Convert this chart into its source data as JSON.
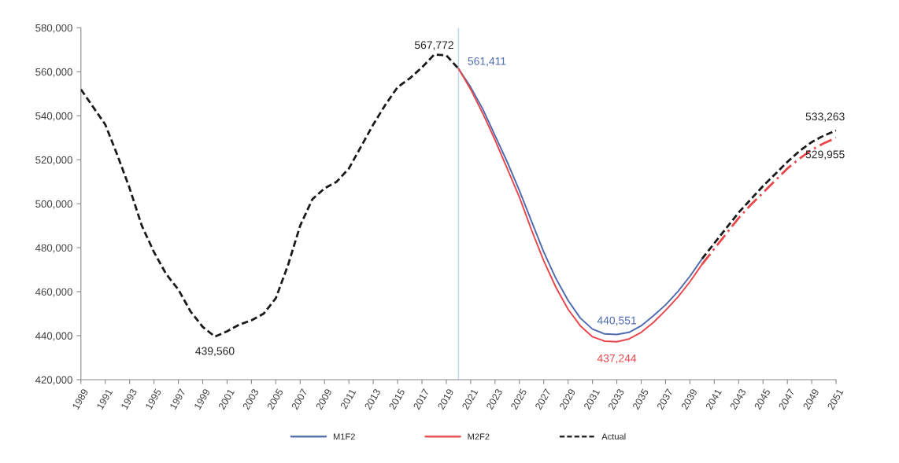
{
  "chart_data": {
    "type": "line",
    "x": [
      1989,
      1990,
      1991,
      1992,
      1993,
      1994,
      1995,
      1996,
      1997,
      1998,
      1999,
      2000,
      2001,
      2002,
      2003,
      2004,
      2005,
      2006,
      2007,
      2008,
      2009,
      2010,
      2011,
      2012,
      2013,
      2014,
      2015,
      2016,
      2017,
      2018,
      2019,
      2020
    ],
    "series": [
      {
        "name": "M1F2",
        "color": "#4f6bb0",
        "line_style": "solid",
        "x": [
          2020,
          2021,
          2022,
          2023,
          2024,
          2025,
          2026,
          2027,
          2028,
          2029,
          2030,
          2031,
          2032,
          2033,
          2034,
          2035,
          2036,
          2037,
          2038,
          2039,
          2040
        ],
        "values": [
          561411,
          553000,
          543000,
          531000,
          519000,
          506000,
          492000,
          478000,
          466000,
          456000,
          448000,
          443000,
          440800,
          440551,
          441500,
          444500,
          449000,
          454000,
          460000,
          467000,
          475000
        ]
      },
      {
        "name": "M2F2",
        "color": "#e8474b",
        "line_style": "solid",
        "x": [
          2020,
          2021,
          2022,
          2023,
          2024,
          2025,
          2026,
          2027,
          2028,
          2029,
          2030,
          2031,
          2032,
          2033,
          2034,
          2035,
          2036,
          2037,
          2038,
          2039,
          2040
        ],
        "values": [
          561411,
          552000,
          541000,
          529000,
          516000,
          503000,
          488000,
          474000,
          462000,
          452000,
          444500,
          439500,
          437500,
          437244,
          438500,
          441500,
          446000,
          451500,
          457500,
          464500,
          472500
        ]
      },
      {
        "name": "Actual",
        "color": "#1a1a1a",
        "line_style": "dashed",
        "values": [
          552000,
          544000,
          536000,
          522000,
          507000,
          490000,
          478000,
          468000,
          461000,
          451000,
          444000,
          439560,
          442000,
          445000,
          447000,
          450000,
          457000,
          472000,
          490000,
          502000,
          507000,
          510000,
          516000,
          526000,
          536000,
          545000,
          553000,
          557000,
          562000,
          567772,
          567500,
          561411
        ]
      },
      {
        "color": "#1a1a1a",
        "line_style": "dashed",
        "x": [
          2040,
          2041,
          2042,
          2043,
          2044,
          2045,
          2046,
          2047,
          2048,
          2049,
          2050,
          2051
        ],
        "values": [
          475000,
          482000,
          489000,
          496000,
          502000,
          508000,
          513500,
          519000,
          524000,
          528000,
          531000,
          533263
        ]
      },
      {
        "color": "#e8474b",
        "line_style": "dotted",
        "x": [
          2040,
          2041,
          2042,
          2043,
          2044,
          2045,
          2046,
          2047,
          2048,
          2049,
          2050,
          2051
        ],
        "values": [
          472500,
          479500,
          486500,
          493500,
          499500,
          505000,
          510500,
          516000,
          520500,
          524500,
          527500,
          529955
        ]
      }
    ],
    "xlim": [
      1989,
      2051
    ],
    "xticks": [
      1989,
      1991,
      1993,
      1995,
      1997,
      1999,
      2001,
      2003,
      2005,
      2007,
      2009,
      2011,
      2013,
      2015,
      2017,
      2019,
      2021,
      2023,
      2025,
      2027,
      2029,
      2031,
      2033,
      2035,
      2037,
      2039,
      2041,
      2043,
      2045,
      2047,
      2049,
      2051
    ],
    "ylim": [
      420000,
      580000
    ],
    "yticks": [
      {
        "value": 420000,
        "label": "420,000"
      },
      {
        "value": 440000,
        "label": "440,000"
      },
      {
        "value": 460000,
        "label": "460,000"
      },
      {
        "value": 480000,
        "label": "480,000"
      },
      {
        "value": 500000,
        "label": "500,000"
      },
      {
        "value": 520000,
        "label": "520,000"
      },
      {
        "value": 540000,
        "label": "540,000"
      },
      {
        "value": 560000,
        "label": "560,000"
      },
      {
        "value": 580000,
        "label": "580,000"
      }
    ],
    "ref_lines": [
      {
        "axis": "x",
        "value": 2020,
        "color": "#bcd3ea"
      }
    ],
    "annotations": [
      {
        "text": "567,772",
        "x": 2018,
        "y": 567772
      },
      {
        "text": "561,411",
        "x": 2020,
        "y": 561411
      },
      {
        "text": "439,560",
        "x": 2000,
        "y": 439560
      },
      {
        "text": "440,551",
        "x": 2033,
        "y": 440551
      },
      {
        "text": "437,244",
        "x": 2033,
        "y": 437244
      },
      {
        "text": "533,263",
        "x": 2051,
        "y": 533263
      },
      {
        "text": "529,955",
        "x": 2051,
        "y": 529955
      }
    ],
    "grid": false,
    "legend": "bottom"
  }
}
